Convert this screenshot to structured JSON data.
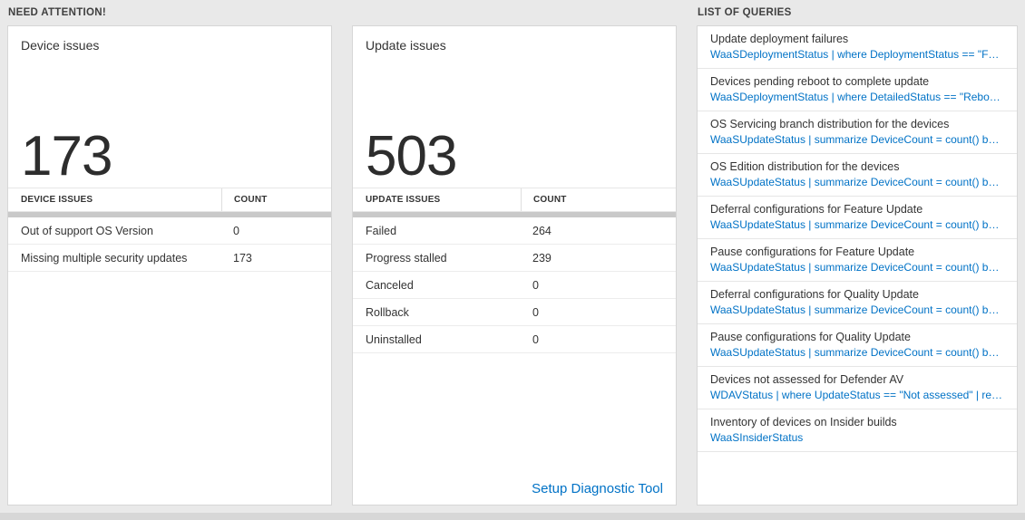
{
  "sections": {
    "need_attention_title": "NEED ATTENTION!",
    "queries_title": "LIST OF QUERIES"
  },
  "device_card": {
    "title": "Device issues",
    "total": "173",
    "col_issue": "DEVICE ISSUES",
    "col_count": "COUNT",
    "rows": [
      {
        "label": "Out of support OS Version",
        "count": "0"
      },
      {
        "label": "Missing multiple security updates",
        "count": "173"
      }
    ]
  },
  "update_card": {
    "title": "Update issues",
    "total": "503",
    "col_issue": "UPDATE ISSUES",
    "col_count": "COUNT",
    "rows": [
      {
        "label": "Failed",
        "count": "264"
      },
      {
        "label": "Progress stalled",
        "count": "239"
      },
      {
        "label": "Canceled",
        "count": "0"
      },
      {
        "label": "Rollback",
        "count": "0"
      },
      {
        "label": "Uninstalled",
        "count": "0"
      }
    ],
    "footer_link": "Setup Diagnostic Tool"
  },
  "query_list": {
    "items": [
      {
        "title": "Update deployment failures",
        "query": "WaaSDeploymentStatus | where DeploymentStatus == \"Failed\" |…"
      },
      {
        "title": "Devices pending reboot to complete update",
        "query": "WaaSDeploymentStatus | where DetailedStatus == \"Reboot pend…"
      },
      {
        "title": "OS Servicing branch distribution for the devices",
        "query": "WaaSUpdateStatus | summarize DeviceCount = count() by OSSer…"
      },
      {
        "title": "OS Edition distribution for the devices",
        "query": "WaaSUpdateStatus | summarize DeviceCount = count() by OSEdit…"
      },
      {
        "title": "Deferral configurations for Feature Update",
        "query": "WaaSUpdateStatus | summarize DeviceCount = count() by Featur…"
      },
      {
        "title": "Pause configurations for Feature Update",
        "query": "WaaSUpdateStatus | summarize DeviceCount = count() by Featur…"
      },
      {
        "title": "Deferral configurations for Quality Update",
        "query": "WaaSUpdateStatus | summarize DeviceCount = count() by Qualit…"
      },
      {
        "title": "Pause configurations for Quality Update",
        "query": "WaaSUpdateStatus | summarize DeviceCount = count() by Qualit…"
      },
      {
        "title": "Devices not assessed for Defender AV",
        "query": "WDAVStatus | where UpdateStatus == \"Not assessed\" | render ta…"
      },
      {
        "title": "Inventory of devices on Insider builds",
        "query": "WaaSInsiderStatus"
      }
    ]
  },
  "colors": {
    "accent_blue": "#0072c6",
    "page_background": "#e9e9e9",
    "card_background": "#ffffff",
    "text_primary": "#333333"
  }
}
